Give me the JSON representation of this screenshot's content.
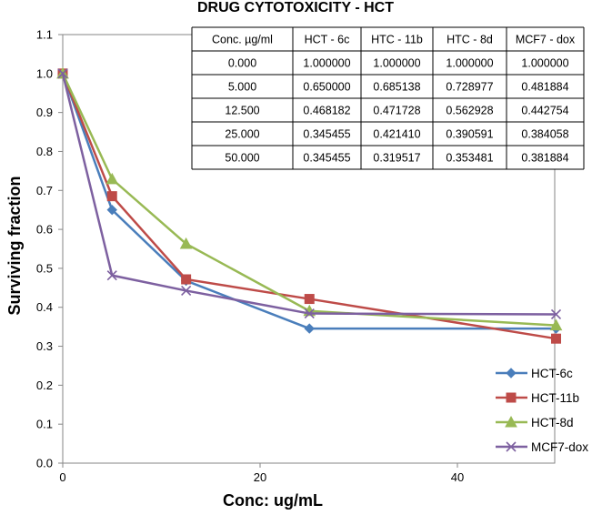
{
  "chart_data": {
    "type": "line",
    "title": "DRUG CYTOTOXICITY - HCT",
    "xlabel": "Conc: ug/mL",
    "ylabel": "Surviving fraction",
    "xlim": [
      0,
      50
    ],
    "ylim": [
      0,
      1.1
    ],
    "x_ticks": [
      "0",
      "20",
      "40"
    ],
    "y_ticks": [
      "0.0",
      "0.1",
      "0.2",
      "0.3",
      "0.4",
      "0.5",
      "0.6",
      "0.7",
      "0.8",
      "0.9",
      "1.0",
      "1.1"
    ],
    "x": [
      0,
      5,
      12.5,
      25,
      50
    ],
    "series": [
      {
        "name": "HCT-6c",
        "color": "#4a7ebb",
        "marker": "diamond",
        "values": [
          1.0,
          0.65,
          0.468182,
          0.345455,
          0.345455
        ]
      },
      {
        "name": "HCT-11b",
        "color": "#be4b48",
        "marker": "square",
        "values": [
          1.0,
          0.685138,
          0.471728,
          0.42141,
          0.319517
        ]
      },
      {
        "name": "HCT-8d",
        "color": "#98b954",
        "marker": "triangle",
        "values": [
          1.0,
          0.728977,
          0.562928,
          0.390591,
          0.353481
        ]
      },
      {
        "name": "MCF7-dox",
        "color": "#7d60a0",
        "marker": "x",
        "values": [
          1.0,
          0.481884,
          0.442754,
          0.384058,
          0.381884
        ]
      }
    ],
    "legend_position": "bottom-right",
    "table": {
      "headers": [
        "Conc. µg/ml",
        "HCT - 6c",
        "HTC - 11b",
        "HTC - 8d",
        "MCF7 - dox"
      ],
      "rows": [
        [
          "0.000",
          "1.000000",
          "1.000000",
          "1.000000",
          "1.000000"
        ],
        [
          "5.000",
          "0.650000",
          "0.685138",
          "0.728977",
          "0.481884"
        ],
        [
          "12.500",
          "0.468182",
          "0.471728",
          "0.562928",
          "0.442754"
        ],
        [
          "25.000",
          "0.345455",
          "0.421410",
          "0.390591",
          "0.384058"
        ],
        [
          "50.000",
          "0.345455",
          "0.319517",
          "0.353481",
          "0.381884"
        ]
      ]
    }
  }
}
